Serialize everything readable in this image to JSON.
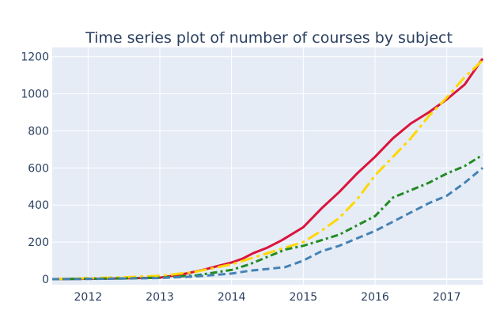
{
  "chart_data": {
    "type": "line",
    "title": "Time series plot of number of courses by subject",
    "xlabel": "",
    "ylabel": "",
    "xlim": [
      2011.5,
      2017.5
    ],
    "ylim": [
      -30,
      1250
    ],
    "grid": true,
    "legend": "none",
    "xticks": [
      2012,
      2013,
      2014,
      2015,
      2016,
      2017
    ],
    "xtick_labels": [
      "2012",
      "2013",
      "2014",
      "2015",
      "2016",
      "2017"
    ],
    "yticks": [
      0,
      200,
      400,
      600,
      800,
      1000,
      1200
    ],
    "ytick_labels": [
      "0",
      "200",
      "400",
      "600",
      "800",
      "1000",
      "1200"
    ],
    "series": [
      {
        "color": "#dc143c",
        "dash": "solid",
        "x": [
          2011.5,
          2012.0,
          2012.5,
          2013.0,
          2013.3,
          2013.6,
          2013.8,
          2014.0,
          2014.15,
          2014.3,
          2014.5,
          2014.7,
          2015.0,
          2015.25,
          2015.5,
          2015.75,
          2016.0,
          2016.25,
          2016.5,
          2016.75,
          2017.0,
          2017.25,
          2017.5
        ],
        "y": [
          0,
          2,
          4,
          8,
          25,
          50,
          70,
          90,
          110,
          140,
          170,
          210,
          280,
          380,
          470,
          570,
          660,
          760,
          840,
          900,
          970,
          1050,
          1190
        ]
      },
      {
        "color": "#ffd700",
        "dash": "longdashdot",
        "x": [
          2011.5,
          2012.0,
          2012.5,
          2013.0,
          2013.5,
          2014.0,
          2014.25,
          2014.5,
          2014.75,
          2015.0,
          2015.25,
          2015.5,
          2015.75,
          2016.0,
          2016.25,
          2016.5,
          2016.75,
          2017.0,
          2017.25,
          2017.5
        ],
        "y": [
          0,
          5,
          10,
          18,
          40,
          80,
          110,
          140,
          170,
          200,
          260,
          330,
          430,
          560,
          660,
          760,
          880,
          980,
          1090,
          1180
        ]
      },
      {
        "color": "#228b22",
        "dash": "dashdot",
        "x": [
          2011.5,
          2012.0,
          2012.5,
          2013.0,
          2013.5,
          2014.0,
          2014.25,
          2014.5,
          2014.75,
          2015.0,
          2015.25,
          2015.5,
          2015.75,
          2016.0,
          2016.25,
          2016.5,
          2016.75,
          2017.0,
          2017.25,
          2017.5
        ],
        "y": [
          0,
          2,
          4,
          8,
          20,
          50,
          80,
          120,
          160,
          180,
          210,
          240,
          290,
          340,
          440,
          480,
          520,
          570,
          610,
          670
        ]
      },
      {
        "color": "#4682b4",
        "dash": "dash",
        "x": [
          2011.5,
          2012.0,
          2012.5,
          2013.0,
          2013.5,
          2014.0,
          2014.25,
          2014.5,
          2014.75,
          2015.0,
          2015.25,
          2015.5,
          2015.75,
          2016.0,
          2016.25,
          2016.5,
          2016.75,
          2017.0,
          2017.25,
          2017.5
        ],
        "y": [
          0,
          1,
          3,
          6,
          15,
          30,
          45,
          55,
          65,
          100,
          150,
          180,
          220,
          260,
          310,
          360,
          410,
          450,
          520,
          600
        ]
      }
    ]
  },
  "colors": {
    "plot_background": "#e5ecf6",
    "grid": "#ffffff",
    "text": "#2a3f5f"
  }
}
